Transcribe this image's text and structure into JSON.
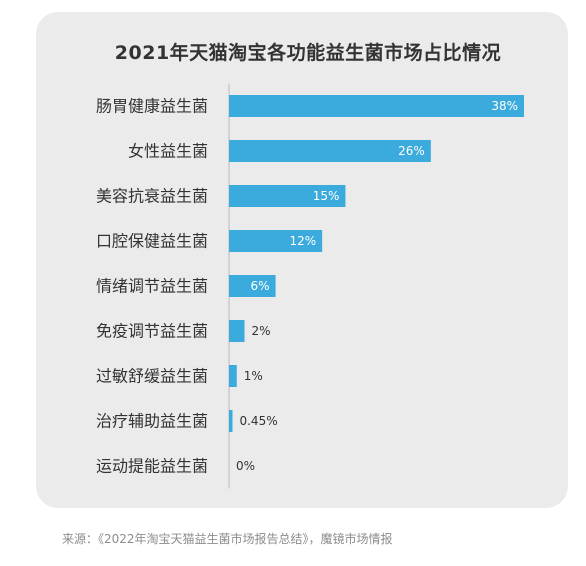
{
  "title": "2021年天猫淘宝各功能益生菌市场占比情况",
  "source": "来源：《2022年淘宝天猫益生菌市场报告总结》，魔镜市场情报",
  "colors": {
    "bar": "#3aabdc",
    "label_inside": "#ffffff",
    "label_outside": "#333333",
    "category_text": "#333333",
    "axis": "#bbbbbb"
  },
  "chart_data": {
    "type": "bar",
    "orientation": "horizontal",
    "title": "2021年天猫淘宝各功能益生菌市场占比情况",
    "categories": [
      "肠胃健康益生菌",
      "女性益生菌",
      "美容抗衰益生菌",
      "口腔保健益生菌",
      "情绪调节益生菌",
      "免疫调节益生菌",
      "过敏舒缓益生菌",
      "治疗辅助益生菌",
      "运动提能益生菌"
    ],
    "values": [
      38,
      26,
      15,
      12,
      6,
      2,
      1,
      0.45,
      0
    ],
    "value_labels": [
      "38%",
      "26%",
      "15%",
      "12%",
      "6%",
      "2%",
      "1%",
      "0.45%",
      "0%"
    ],
    "unit": "%",
    "xlim": [
      0,
      38
    ],
    "grid": false,
    "legend": "none"
  }
}
